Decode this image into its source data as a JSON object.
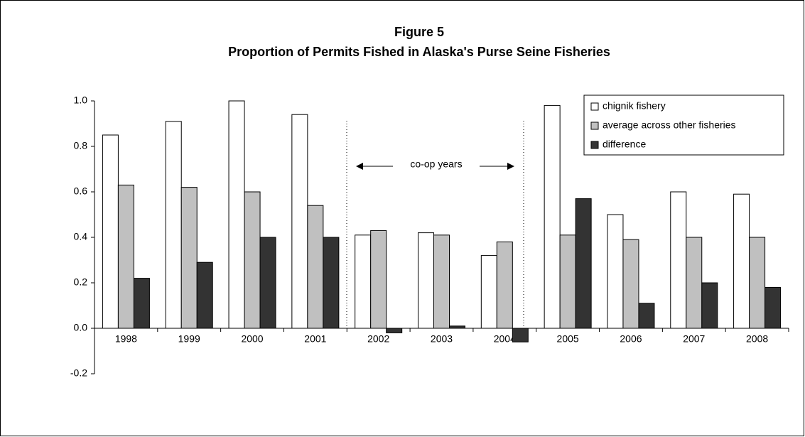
{
  "chart_data": {
    "type": "bar",
    "title": "Figure 5",
    "subtitle": "Proportion of Permits Fished in Alaska's Purse Seine Fisheries",
    "annotation": "co-op years",
    "categories": [
      "1998",
      "1999",
      "2000",
      "2001",
      "2002",
      "2003",
      "2004",
      "2005",
      "2006",
      "2007",
      "2008"
    ],
    "series": [
      {
        "name": "chignik fishery",
        "color": "#ffffff",
        "values": [
          0.85,
          0.91,
          1.0,
          0.94,
          0.41,
          0.42,
          0.32,
          0.98,
          0.5,
          0.6,
          0.59
        ]
      },
      {
        "name": "average across other fisheries",
        "color": "#c0c0c0",
        "values": [
          0.63,
          0.62,
          0.6,
          0.54,
          0.43,
          0.41,
          0.38,
          0.41,
          0.39,
          0.4,
          0.4
        ]
      },
      {
        "name": "difference",
        "color": "#333333",
        "values": [
          0.22,
          0.29,
          0.4,
          0.4,
          -0.02,
          0.01,
          -0.06,
          0.57,
          0.11,
          0.2,
          0.18
        ]
      }
    ],
    "ylim": [
      -0.2,
      1.0
    ],
    "yticks": [
      -0.2,
      {
        "value": 0.0,
        "label": "0.0"
      },
      0.2,
      0.4,
      0.6,
      0.8,
      {
        "value": 1.0,
        "label": "1.0"
      }
    ],
    "grid": false,
    "legend": "top-right"
  }
}
